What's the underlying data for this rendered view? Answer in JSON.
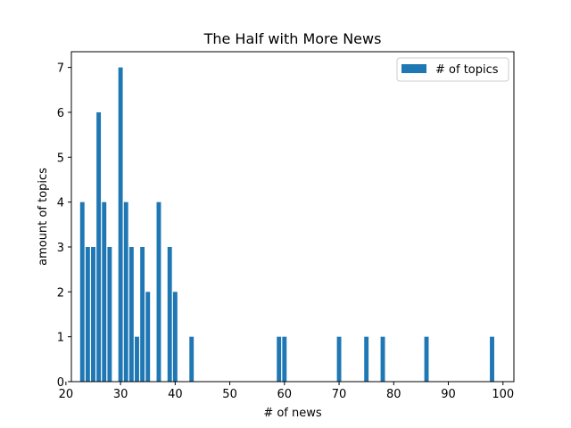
{
  "chart_data": {
    "type": "bar",
    "title": "The Half with More News",
    "xlabel": "# of news",
    "ylabel": "amount of topics",
    "xlim": [
      21,
      102
    ],
    "ylim": [
      0,
      7.35
    ],
    "xticks": [
      20,
      30,
      40,
      50,
      60,
      70,
      80,
      90,
      100
    ],
    "yticks": [
      0,
      1,
      2,
      3,
      4,
      5,
      6,
      7
    ],
    "grid": false,
    "legend_position": "top-right",
    "series": [
      {
        "name": "# of topics",
        "color": "#1f77b4",
        "points": [
          {
            "x": 23,
            "y": 4
          },
          {
            "x": 24,
            "y": 3
          },
          {
            "x": 25,
            "y": 3
          },
          {
            "x": 26,
            "y": 6
          },
          {
            "x": 27,
            "y": 4
          },
          {
            "x": 28,
            "y": 3
          },
          {
            "x": 30,
            "y": 7
          },
          {
            "x": 31,
            "y": 4
          },
          {
            "x": 32,
            "y": 3
          },
          {
            "x": 33,
            "y": 1
          },
          {
            "x": 34,
            "y": 3
          },
          {
            "x": 35,
            "y": 2
          },
          {
            "x": 37,
            "y": 4
          },
          {
            "x": 39,
            "y": 3
          },
          {
            "x": 40,
            "y": 2
          },
          {
            "x": 43,
            "y": 1
          },
          {
            "x": 59,
            "y": 1
          },
          {
            "x": 60,
            "y": 1
          },
          {
            "x": 70,
            "y": 1
          },
          {
            "x": 75,
            "y": 1
          },
          {
            "x": 78,
            "y": 1
          },
          {
            "x": 86,
            "y": 1
          },
          {
            "x": 98,
            "y": 1
          }
        ]
      }
    ]
  }
}
